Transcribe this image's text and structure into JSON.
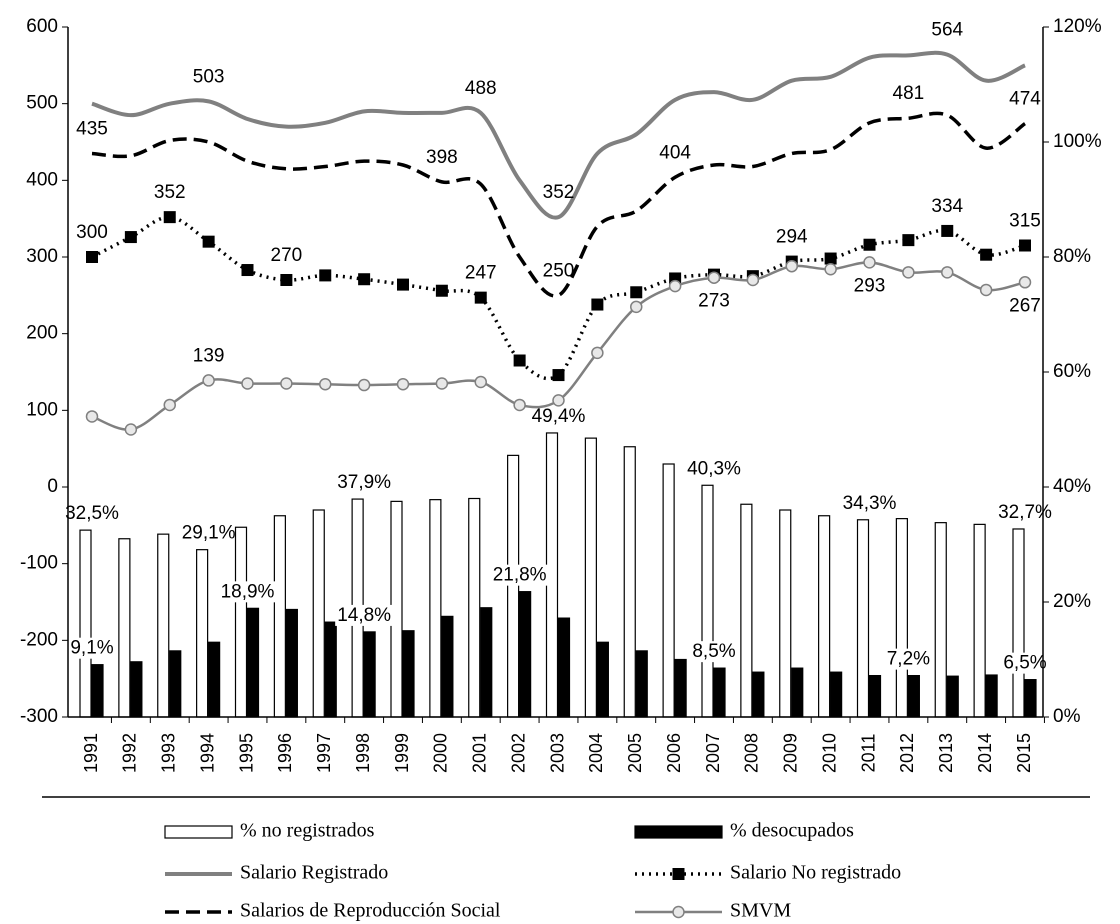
{
  "chart_data": {
    "type": "combo",
    "categories": [
      "1991",
      "1992",
      "1993",
      "1994",
      "1995",
      "1996",
      "1997",
      "1998",
      "1999",
      "2000",
      "2001",
      "2002",
      "2003",
      "2004",
      "2005",
      "2006",
      "2007",
      "2008",
      "2009",
      "2010",
      "2011",
      "2012",
      "2013",
      "2014",
      "2015"
    ],
    "series": [
      {
        "name": "% no registrados",
        "type": "bar",
        "axis": "y2",
        "color": "#ffffff",
        "stroke": "#000000",
        "values": [
          32.5,
          31.0,
          31.8,
          29.1,
          33.0,
          35.0,
          36.0,
          37.9,
          37.5,
          37.8,
          38.0,
          45.5,
          49.4,
          48.5,
          47.0,
          44.0,
          40.3,
          37.0,
          36.0,
          35.0,
          34.3,
          34.5,
          33.8,
          33.5,
          32.7
        ],
        "value_labels": [
          "32,5%",
          null,
          null,
          "29,1%",
          null,
          null,
          null,
          "37,9%",
          null,
          null,
          null,
          null,
          "49,4%",
          null,
          null,
          null,
          "40,3%",
          null,
          null,
          null,
          "34,3%",
          null,
          null,
          null,
          "32,7%"
        ]
      },
      {
        "name": "% desocupados",
        "type": "bar",
        "axis": "y2",
        "color": "#000000",
        "stroke": "#000000",
        "values": [
          9.1,
          9.6,
          11.5,
          13.0,
          18.9,
          18.7,
          16.5,
          14.8,
          15.0,
          17.5,
          19.0,
          21.8,
          17.2,
          13.0,
          11.5,
          10.0,
          8.5,
          7.8,
          8.5,
          7.8,
          7.2,
          7.2,
          7.1,
          7.3,
          6.5
        ],
        "value_labels": [
          "9,1%",
          null,
          null,
          null,
          "18,9%",
          null,
          null,
          "14,8%",
          null,
          null,
          null,
          "21,8%",
          null,
          null,
          null,
          null,
          "8,5%",
          null,
          null,
          null,
          null,
          "7,2%",
          null,
          null,
          "6,5%"
        ]
      },
      {
        "name": "Salario Registrado",
        "type": "line",
        "axis": "y",
        "color": "#808080",
        "style": "solid",
        "marker": "none",
        "values": [
          500,
          485,
          500,
          503,
          480,
          470,
          475,
          490,
          488,
          488,
          488,
          400,
          352,
          435,
          460,
          505,
          515,
          505,
          530,
          535,
          560,
          563,
          564,
          530,
          550
        ],
        "value_labels": [
          null,
          null,
          null,
          "503",
          null,
          null,
          null,
          null,
          null,
          null,
          "488",
          null,
          "352",
          null,
          null,
          null,
          null,
          null,
          null,
          null,
          null,
          null,
          "564",
          null,
          null
        ]
      },
      {
        "name": "Salario No registrado",
        "type": "line",
        "axis": "y",
        "color": "#000000",
        "style": "dotted",
        "marker": "square",
        "values": [
          300,
          326,
          352,
          320,
          283,
          270,
          276,
          271,
          264,
          256,
          247,
          165,
          146,
          238,
          254,
          272,
          277,
          275,
          294,
          298,
          316,
          322,
          334,
          303,
          315
        ],
        "value_labels": [
          "300",
          null,
          "352",
          null,
          null,
          "270",
          null,
          null,
          null,
          null,
          "247",
          null,
          null,
          null,
          null,
          null,
          null,
          null,
          "294",
          null,
          null,
          null,
          "334",
          null,
          "315"
        ]
      },
      {
        "name": "Salarios de Reproducción Social",
        "type": "line",
        "axis": "y",
        "color": "#000000",
        "style": "dashed",
        "marker": "none",
        "values": [
          435,
          432,
          452,
          450,
          425,
          415,
          418,
          425,
          420,
          398,
          395,
          300,
          250,
          340,
          360,
          404,
          420,
          418,
          435,
          440,
          475,
          481,
          485,
          442,
          474
        ],
        "value_labels": [
          "435",
          null,
          null,
          null,
          null,
          null,
          null,
          null,
          null,
          "398",
          null,
          null,
          "250",
          null,
          null,
          "404",
          null,
          null,
          null,
          null,
          null,
          "481",
          null,
          null,
          "474"
        ]
      },
      {
        "name": "SMVM",
        "type": "line",
        "axis": "y",
        "color": "#808080",
        "style": "solid",
        "marker": "circle",
        "values": [
          92,
          75,
          107,
          139,
          135,
          135,
          134,
          133,
          134,
          135,
          137,
          107,
          113,
          175,
          235,
          262,
          273,
          270,
          288,
          284,
          293,
          280,
          280,
          257,
          267
        ],
        "value_labels": [
          null,
          null,
          null,
          "139",
          null,
          null,
          null,
          null,
          null,
          null,
          null,
          null,
          null,
          null,
          null,
          null,
          "273",
          null,
          null,
          null,
          "293",
          null,
          null,
          null,
          "267"
        ]
      }
    ],
    "ylim": [
      -300,
      600
    ],
    "yticks": [
      -300,
      -200,
      -100,
      0,
      100,
      200,
      300,
      400,
      500,
      600
    ],
    "y2lim": [
      0,
      120
    ],
    "y2ticks": [
      {
        "value": 0,
        "label": "0%"
      },
      {
        "value": 20,
        "label": "20%"
      },
      {
        "value": 40,
        "label": "40%"
      },
      {
        "value": 60,
        "label": "60%"
      },
      {
        "value": 80,
        "label": "80%"
      },
      {
        "value": 100,
        "label": "100%"
      },
      {
        "value": 120,
        "label": "120%"
      }
    ],
    "legend": "bottom"
  }
}
